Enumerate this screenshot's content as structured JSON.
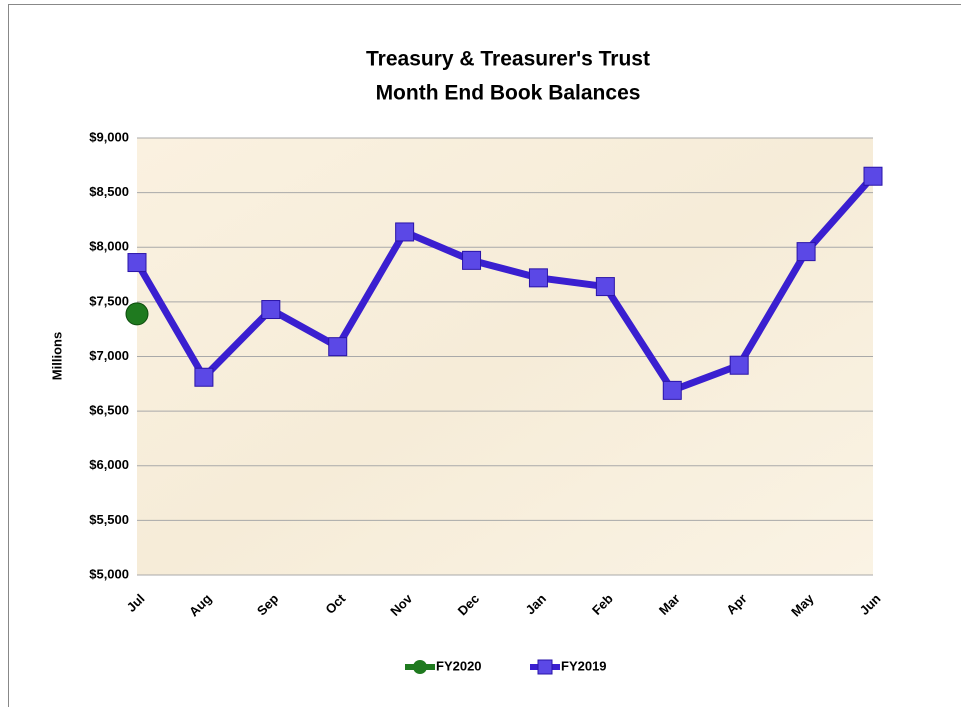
{
  "chart_data": {
    "type": "line",
    "title": "Treasury & Treasurer's Trust",
    "subtitle": "Month End Book Balances",
    "y_label": "Millions",
    "categories": [
      "Jul",
      "Aug",
      "Sep",
      "Oct",
      "Nov",
      "Dec",
      "Jan",
      "Feb",
      "Mar",
      "Apr",
      "May",
      "Jun"
    ],
    "series": [
      {
        "name": "FY2020",
        "color": "#1f7a1f",
        "values": [
          7390,
          null,
          null,
          null,
          null,
          null,
          null,
          null,
          null,
          null,
          null,
          null
        ]
      },
      {
        "name": "FY2019",
        "color": "#3a1fd0",
        "values": [
          7860,
          6810,
          7430,
          7090,
          8140,
          7880,
          7720,
          7640,
          6690,
          6920,
          7960,
          8650
        ]
      }
    ],
    "ylim": [
      5000,
      9000
    ],
    "yticks": [
      {
        "value": 5000,
        "label": "$5,000"
      },
      {
        "value": 5500,
        "label": "$5,500"
      },
      {
        "value": 6000,
        "label": "$6,000"
      },
      {
        "value": 6500,
        "label": "$6,500"
      },
      {
        "value": 7000,
        "label": "$7,000"
      },
      {
        "value": 7500,
        "label": "$7,500"
      },
      {
        "value": 8000,
        "label": "$8,000"
      },
      {
        "value": 8500,
        "label": "$8,500"
      },
      {
        "value": 9000,
        "label": "$9,000"
      }
    ],
    "grid": true,
    "legend": "bottom"
  }
}
